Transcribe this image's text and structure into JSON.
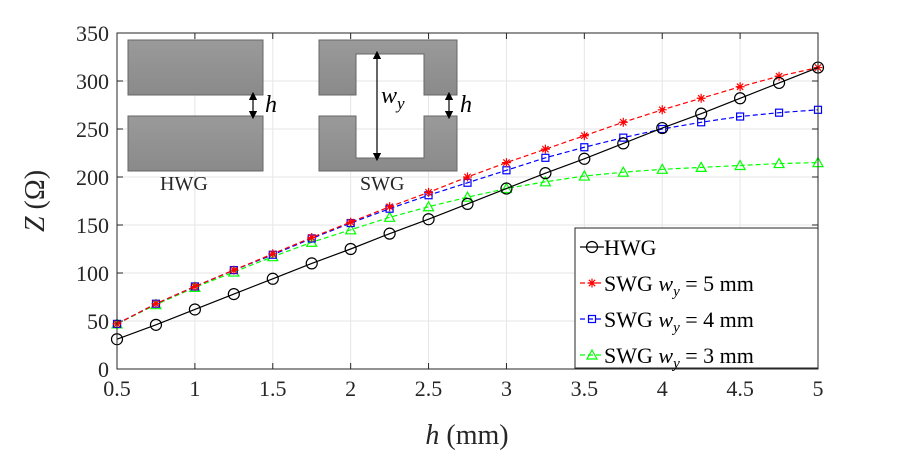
{
  "chart_data": {
    "type": "line",
    "title": "",
    "xlabel_var": "h",
    "xlabel_unit": "(mm)",
    "ylabel_var": "Z",
    "ylabel_unit": "(Ω)",
    "xlim": [
      0.5,
      5
    ],
    "ylim": [
      0,
      350
    ],
    "xticks": [
      0.5,
      1,
      1.5,
      2,
      2.5,
      3,
      3.5,
      4,
      4.5,
      5
    ],
    "xtick_labels": [
      "0.5",
      "1",
      "1.5",
      "2",
      "2.5",
      "3",
      "3.5",
      "4",
      "4.5",
      "5"
    ],
    "yticks": [
      0,
      50,
      100,
      150,
      200,
      250,
      300,
      350
    ],
    "ytick_labels": [
      "0",
      "50",
      "100",
      "150",
      "200",
      "250",
      "300",
      "350"
    ],
    "grid": true,
    "x": [
      0.5,
      0.75,
      1,
      1.25,
      1.5,
      1.75,
      2,
      2.25,
      2.5,
      2.75,
      3,
      3.25,
      3.5,
      3.75,
      4,
      4.25,
      4.5,
      4.75,
      5
    ],
    "series": [
      {
        "name": "HWG",
        "color": "#000000",
        "marker": "circle",
        "dash": "solid",
        "values": [
          31,
          46,
          62,
          78,
          94,
          110,
          125,
          141,
          156,
          172,
          188,
          204,
          219,
          235,
          251,
          266,
          282,
          298,
          314
        ]
      },
      {
        "name": "SWG w_y = 5 mm",
        "color": "#ff0000",
        "marker": "star",
        "dash": "dashed",
        "values": [
          47,
          68,
          86,
          103,
          120,
          137,
          153,
          169,
          184,
          200,
          215,
          229,
          243,
          257,
          270,
          282,
          294,
          305,
          314
        ]
      },
      {
        "name": "SWG w_y = 4 mm",
        "color": "#0000ff",
        "marker": "square",
        "dash": "dashed",
        "values": [
          47,
          68,
          86,
          103,
          119,
          136,
          152,
          167,
          181,
          194,
          207,
          220,
          231,
          241,
          250,
          257,
          263,
          267,
          270
        ]
      },
      {
        "name": "SWG w_y = 3 mm",
        "color": "#00ff00",
        "marker": "triangle",
        "dash": "dashed",
        "values": [
          47,
          67,
          85,
          101,
          117,
          132,
          145,
          158,
          169,
          179,
          188,
          195,
          201,
          205,
          208,
          210,
          212,
          214,
          215
        ]
      }
    ],
    "legend": {
      "position": "bottom-right",
      "entries": [
        {
          "prefix": "HWG",
          "var": "",
          "rest": ""
        },
        {
          "prefix": "SWG ",
          "var": "w",
          "sub": "y",
          "rest": " = 5 mm"
        },
        {
          "prefix": "SWG ",
          "var": "w",
          "sub": "y",
          "rest": " = 4 mm"
        },
        {
          "prefix": "SWG ",
          "var": "w",
          "sub": "y",
          "rest": " = 3 mm"
        }
      ]
    },
    "inset": {
      "hwg_label": "HWG",
      "swg_label": "SWG",
      "gap_var": "h",
      "width_var": "w",
      "width_sub": "y"
    }
  }
}
